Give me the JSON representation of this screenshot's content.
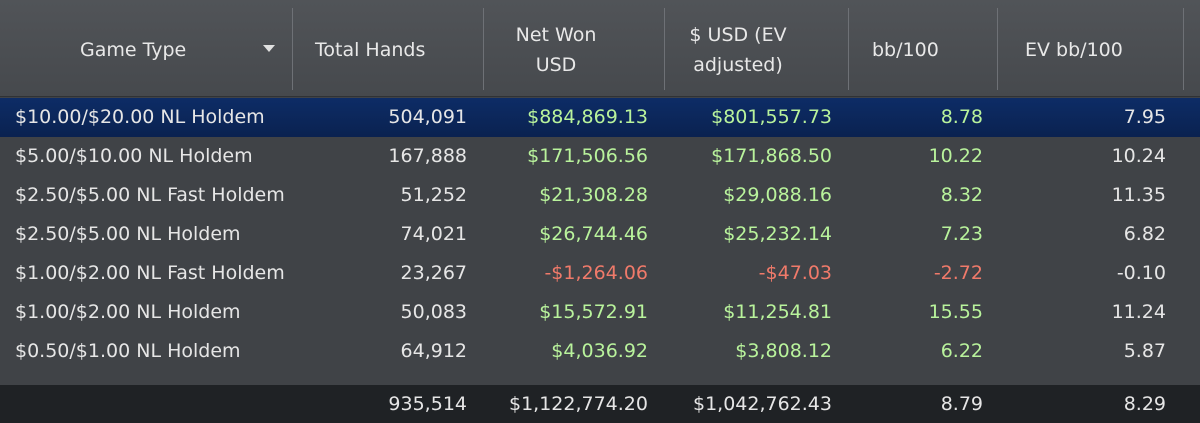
{
  "header": {
    "columns": [
      "Game Type",
      "Total Hands",
      "Net Won USD",
      "$ USD (EV adjusted)",
      "bb/100",
      "EV bb/100"
    ]
  },
  "table": {
    "rows": [
      [
        "$10.00/$20.00 NL Holdem",
        "504,091",
        "$884,869.13",
        "$801,557.73",
        "8.78",
        "7.95"
      ],
      [
        "$5.00/$10.00 NL Holdem",
        "167,888",
        "$171,506.56",
        "$171,868.50",
        "10.22",
        "10.24"
      ],
      [
        "$2.50/$5.00 NL Fast Holdem",
        "51,252",
        "$21,308.28",
        "$29,088.16",
        "8.32",
        "11.35"
      ],
      [
        "$2.50/$5.00 NL Holdem",
        "74,021",
        "$26,744.46",
        "$25,232.14",
        "7.23",
        "6.82"
      ],
      [
        "$1.00/$2.00 NL Fast Holdem",
        "23,267",
        "-$1,264.06",
        "-$47.03",
        "-2.72",
        "-0.10"
      ],
      [
        "$1.00/$2.00 NL Holdem",
        "50,083",
        "$15,572.91",
        "$11,254.81",
        "15.55",
        "11.24"
      ],
      [
        "$0.50/$1.00 NL Holdem",
        "64,912",
        "$4,036.92",
        "$3,808.12",
        "6.22",
        "5.87"
      ]
    ],
    "totals": [
      "935,514",
      "$1,122,774.20",
      "$1,042,762.43",
      "8.79",
      "8.29"
    ]
  }
}
